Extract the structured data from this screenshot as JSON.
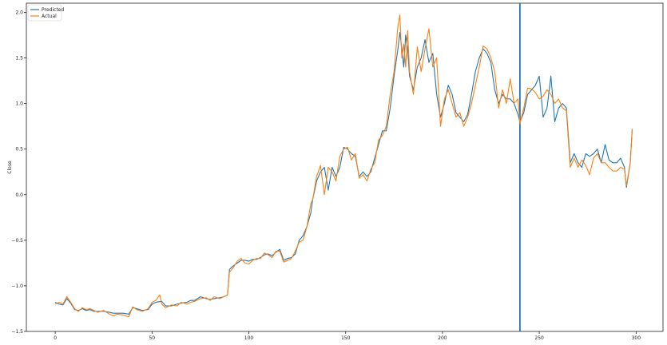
{
  "chart_data": {
    "type": "line",
    "title": "",
    "xlabel": "",
    "ylabel": "Close",
    "xlim": [
      -14.9,
      313.9
    ],
    "ylim": [
      -1.5,
      2.1
    ],
    "x_ticks": [
      0,
      50,
      100,
      150,
      200,
      250,
      300
    ],
    "y_ticks": [
      -1.5,
      -1.0,
      -0.5,
      0.0,
      0.5,
      1.0,
      1.5,
      2.0
    ],
    "x_tick_labels": [
      "0",
      "50",
      "100",
      "150",
      "200",
      "250",
      "300"
    ],
    "y_tick_labels": [
      "−1.5",
      "−1.0",
      "−0.5",
      "0.0",
      "0.5",
      "1.0",
      "1.5",
      "2.0"
    ],
    "grid": false,
    "legend_position": "top-left",
    "vertical_line": {
      "x": 240,
      "color": "#1f77b4"
    },
    "series": [
      {
        "name": "Predicted",
        "color": "#1f77b4",
        "points": [
          [
            0,
            -1.18
          ],
          [
            2,
            -1.2
          ],
          [
            4,
            -1.21
          ],
          [
            6,
            -1.14
          ],
          [
            8,
            -1.19
          ],
          [
            10,
            -1.26
          ],
          [
            12,
            -1.27
          ],
          [
            14,
            -1.25
          ],
          [
            16,
            -1.27
          ],
          [
            18,
            -1.26
          ],
          [
            20,
            -1.28
          ],
          [
            22,
            -1.28
          ],
          [
            25,
            -1.28
          ],
          [
            28,
            -1.29
          ],
          [
            30,
            -1.3
          ],
          [
            32,
            -1.3
          ],
          [
            35,
            -1.3
          ],
          [
            38,
            -1.31
          ],
          [
            40,
            -1.24
          ],
          [
            42,
            -1.25
          ],
          [
            45,
            -1.27
          ],
          [
            48,
            -1.26
          ],
          [
            50,
            -1.2
          ],
          [
            52,
            -1.18
          ],
          [
            55,
            -1.17
          ],
          [
            57,
            -1.22
          ],
          [
            60,
            -1.22
          ],
          [
            63,
            -1.2
          ],
          [
            65,
            -1.19
          ],
          [
            68,
            -1.18
          ],
          [
            70,
            -1.16
          ],
          [
            72,
            -1.16
          ],
          [
            75,
            -1.12
          ],
          [
            78,
            -1.14
          ],
          [
            80,
            -1.15
          ],
          [
            82,
            -1.14
          ],
          [
            85,
            -1.13
          ],
          [
            87,
            -1.12
          ],
          [
            89,
            -1.1
          ],
          [
            90,
            -0.82
          ],
          [
            92,
            -0.78
          ],
          [
            94,
            -0.75
          ],
          [
            96,
            -0.72
          ],
          [
            98,
            -0.72
          ],
          [
            100,
            -0.73
          ],
          [
            102,
            -0.71
          ],
          [
            104,
            -0.71
          ],
          [
            106,
            -0.69
          ],
          [
            108,
            -0.66
          ],
          [
            110,
            -0.65
          ],
          [
            112,
            -0.67
          ],
          [
            114,
            -0.63
          ],
          [
            116,
            -0.6
          ],
          [
            118,
            -0.72
          ],
          [
            120,
            -0.7
          ],
          [
            122,
            -0.69
          ],
          [
            124,
            -0.65
          ],
          [
            126,
            -0.5
          ],
          [
            128,
            -0.45
          ],
          [
            130,
            -0.35
          ],
          [
            132,
            -0.2
          ],
          [
            133,
            -0.05
          ],
          [
            135,
            0.15
          ],
          [
            137,
            0.25
          ],
          [
            139,
            0.3
          ],
          [
            141,
            0.05
          ],
          [
            143,
            0.3
          ],
          [
            145,
            0.2
          ],
          [
            147,
            0.3
          ],
          [
            149,
            0.52
          ],
          [
            151,
            0.5
          ],
          [
            153,
            0.45
          ],
          [
            155,
            0.42
          ],
          [
            157,
            0.2
          ],
          [
            159,
            0.25
          ],
          [
            161,
            0.2
          ],
          [
            163,
            0.25
          ],
          [
            165,
            0.4
          ],
          [
            167,
            0.55
          ],
          [
            169,
            0.7
          ],
          [
            171,
            0.7
          ],
          [
            173,
            0.95
          ],
          [
            175,
            1.3
          ],
          [
            177,
            1.6
          ],
          [
            178,
            1.78
          ],
          [
            179,
            1.6
          ],
          [
            180,
            1.4
          ],
          [
            181,
            1.75
          ],
          [
            182,
            1.6
          ],
          [
            183,
            1.3
          ],
          [
            185,
            1.15
          ],
          [
            187,
            1.4
          ],
          [
            189,
            1.5
          ],
          [
            191,
            1.7
          ],
          [
            193,
            1.45
          ],
          [
            195,
            1.55
          ],
          [
            197,
            1.1
          ],
          [
            199,
            0.85
          ],
          [
            201,
            1.0
          ],
          [
            203,
            1.2
          ],
          [
            205,
            1.1
          ],
          [
            207,
            0.9
          ],
          [
            209,
            0.85
          ],
          [
            211,
            0.8
          ],
          [
            213,
            0.88
          ],
          [
            215,
            1.1
          ],
          [
            217,
            1.35
          ],
          [
            219,
            1.5
          ],
          [
            221,
            1.6
          ],
          [
            223,
            1.55
          ],
          [
            225,
            1.45
          ],
          [
            227,
            1.15
          ],
          [
            229,
            1.0
          ],
          [
            231,
            1.1
          ],
          [
            233,
            1.05
          ],
          [
            235,
            1.05
          ],
          [
            237,
            1.0
          ],
          [
            239,
            0.88
          ],
          [
            240,
            0.8
          ],
          [
            242,
            0.9
          ],
          [
            244,
            1.1
          ],
          [
            246,
            1.15
          ],
          [
            248,
            1.2
          ],
          [
            250,
            1.3
          ],
          [
            252,
            0.85
          ],
          [
            254,
            0.95
          ],
          [
            256,
            1.3
          ],
          [
            258,
            0.8
          ],
          [
            260,
            0.95
          ],
          [
            262,
            1.0
          ],
          [
            264,
            0.95
          ],
          [
            266,
            0.35
          ],
          [
            268,
            0.45
          ],
          [
            270,
            0.35
          ],
          [
            272,
            0.3
          ],
          [
            274,
            0.45
          ],
          [
            276,
            0.42
          ],
          [
            278,
            0.45
          ],
          [
            280,
            0.5
          ],
          [
            282,
            0.35
          ],
          [
            284,
            0.55
          ],
          [
            286,
            0.38
          ],
          [
            288,
            0.35
          ],
          [
            290,
            0.35
          ],
          [
            292,
            0.4
          ],
          [
            294,
            0.3
          ],
          [
            295,
            0.08
          ],
          [
            297,
            0.35
          ],
          [
            298,
            0.72
          ]
        ]
      },
      {
        "name": "Actual",
        "color": "#ff7f0e",
        "points": [
          [
            0,
            -1.2
          ],
          [
            2,
            -1.18
          ],
          [
            4,
            -1.2
          ],
          [
            6,
            -1.12
          ],
          [
            8,
            -1.18
          ],
          [
            10,
            -1.25
          ],
          [
            12,
            -1.28
          ],
          [
            14,
            -1.24
          ],
          [
            16,
            -1.26
          ],
          [
            18,
            -1.25
          ],
          [
            20,
            -1.27
          ],
          [
            22,
            -1.29
          ],
          [
            25,
            -1.27
          ],
          [
            28,
            -1.31
          ],
          [
            30,
            -1.33
          ],
          [
            32,
            -1.31
          ],
          [
            35,
            -1.32
          ],
          [
            38,
            -1.34
          ],
          [
            40,
            -1.23
          ],
          [
            42,
            -1.26
          ],
          [
            45,
            -1.28
          ],
          [
            48,
            -1.25
          ],
          [
            50,
            -1.18
          ],
          [
            52,
            -1.16
          ],
          [
            54,
            -1.1
          ],
          [
            55,
            -1.2
          ],
          [
            57,
            -1.24
          ],
          [
            60,
            -1.21
          ],
          [
            63,
            -1.22
          ],
          [
            65,
            -1.18
          ],
          [
            68,
            -1.2
          ],
          [
            70,
            -1.18
          ],
          [
            72,
            -1.17
          ],
          [
            75,
            -1.14
          ],
          [
            78,
            -1.13
          ],
          [
            80,
            -1.16
          ],
          [
            82,
            -1.12
          ],
          [
            85,
            -1.14
          ],
          [
            87,
            -1.12
          ],
          [
            89,
            -1.1
          ],
          [
            90,
            -0.85
          ],
          [
            92,
            -0.8
          ],
          [
            94,
            -0.73
          ],
          [
            96,
            -0.7
          ],
          [
            98,
            -0.75
          ],
          [
            100,
            -0.76
          ],
          [
            102,
            -0.72
          ],
          [
            104,
            -0.7
          ],
          [
            106,
            -0.7
          ],
          [
            108,
            -0.64
          ],
          [
            110,
            -0.66
          ],
          [
            112,
            -0.69
          ],
          [
            114,
            -0.62
          ],
          [
            116,
            -0.62
          ],
          [
            118,
            -0.74
          ],
          [
            120,
            -0.72
          ],
          [
            122,
            -0.7
          ],
          [
            124,
            -0.62
          ],
          [
            126,
            -0.52
          ],
          [
            128,
            -0.5
          ],
          [
            130,
            -0.35
          ],
          [
            132,
            -0.1
          ],
          [
            133,
            -0.05
          ],
          [
            135,
            0.2
          ],
          [
            137,
            0.32
          ],
          [
            139,
            0.0
          ],
          [
            141,
            0.3
          ],
          [
            143,
            0.25
          ],
          [
            145,
            0.15
          ],
          [
            147,
            0.42
          ],
          [
            149,
            0.5
          ],
          [
            151,
            0.52
          ],
          [
            153,
            0.38
          ],
          [
            155,
            0.45
          ],
          [
            157,
            0.18
          ],
          [
            159,
            0.22
          ],
          [
            161,
            0.15
          ],
          [
            163,
            0.28
          ],
          [
            165,
            0.35
          ],
          [
            167,
            0.6
          ],
          [
            169,
            0.65
          ],
          [
            171,
            0.75
          ],
          [
            173,
            1.1
          ],
          [
            175,
            1.35
          ],
          [
            177,
            1.85
          ],
          [
            178,
            1.97
          ],
          [
            179,
            1.5
          ],
          [
            180,
            1.65
          ],
          [
            181,
            1.4
          ],
          [
            182,
            1.8
          ],
          [
            183,
            1.35
          ],
          [
            185,
            1.1
          ],
          [
            187,
            1.62
          ],
          [
            189,
            1.35
          ],
          [
            191,
            1.6
          ],
          [
            193,
            1.82
          ],
          [
            195,
            1.4
          ],
          [
            197,
            1.5
          ],
          [
            199,
            0.75
          ],
          [
            201,
            1.05
          ],
          [
            203,
            1.15
          ],
          [
            205,
            1.0
          ],
          [
            207,
            0.85
          ],
          [
            209,
            0.9
          ],
          [
            211,
            0.75
          ],
          [
            213,
            0.85
          ],
          [
            215,
            1.0
          ],
          [
            217,
            1.2
          ],
          [
            219,
            1.4
          ],
          [
            221,
            1.63
          ],
          [
            223,
            1.6
          ],
          [
            225,
            1.5
          ],
          [
            227,
            1.35
          ],
          [
            229,
            0.95
          ],
          [
            231,
            1.15
          ],
          [
            233,
            1.0
          ],
          [
            235,
            1.27
          ],
          [
            237,
            1.0
          ],
          [
            239,
            1.05
          ],
          [
            240,
            0.78
          ],
          [
            242,
            0.95
          ],
          [
            244,
            1.17
          ],
          [
            246,
            1.16
          ],
          [
            248,
            1.12
          ],
          [
            250,
            1.05
          ],
          [
            252,
            1.08
          ],
          [
            254,
            1.15
          ],
          [
            256,
            1.1
          ],
          [
            258,
            1.0
          ],
          [
            260,
            1.05
          ],
          [
            262,
            0.95
          ],
          [
            264,
            0.92
          ],
          [
            266,
            0.3
          ],
          [
            268,
            0.4
          ],
          [
            270,
            0.3
          ],
          [
            272,
            0.38
          ],
          [
            274,
            0.32
          ],
          [
            276,
            0.22
          ],
          [
            278,
            0.4
          ],
          [
            280,
            0.45
          ],
          [
            282,
            0.35
          ],
          [
            284,
            0.35
          ],
          [
            286,
            0.3
          ],
          [
            288,
            0.26
          ],
          [
            290,
            0.26
          ],
          [
            292,
            0.3
          ],
          [
            294,
            0.28
          ],
          [
            295,
            0.1
          ],
          [
            297,
            0.35
          ],
          [
            298,
            0.72
          ]
        ]
      }
    ]
  }
}
